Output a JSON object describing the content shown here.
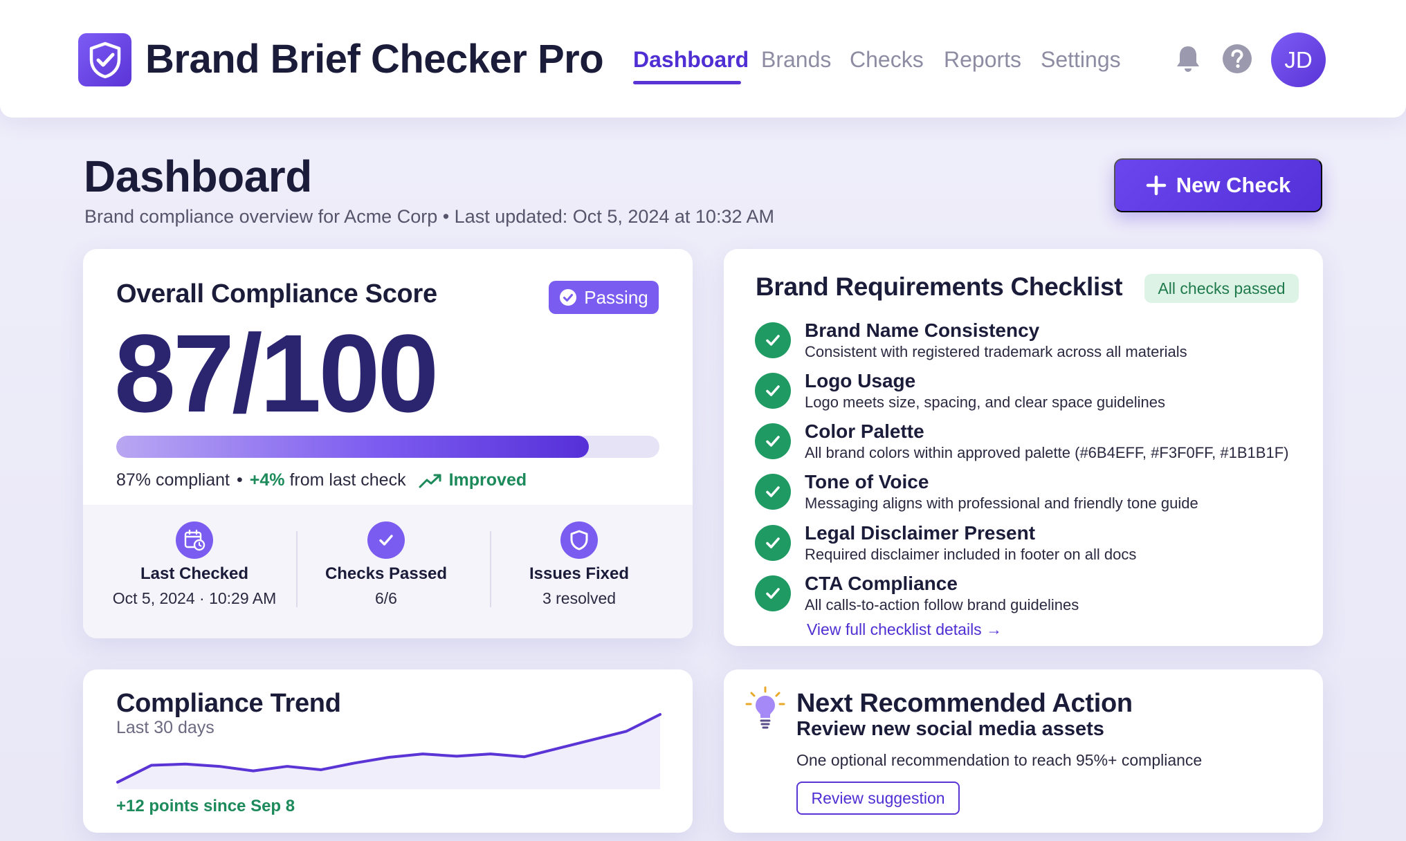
{
  "app": {
    "title": "Brand Brief Checker Pro",
    "logo_icon": "shield-check-icon",
    "accent_color": "#5b34d6"
  },
  "nav": {
    "items": [
      {
        "label": "Dashboard",
        "active": true
      },
      {
        "label": "Brands",
        "active": false
      },
      {
        "label": "Checks",
        "active": false
      },
      {
        "label": "Reports",
        "active": false
      },
      {
        "label": "Settings",
        "active": false
      }
    ],
    "notifications_icon": "bell-icon",
    "help_icon": "help-icon",
    "avatar_initials": "JD"
  },
  "page": {
    "title": "Dashboard",
    "subtitle": "Brand compliance overview for Acme Corp • Last updated: Oct 5, 2024 at 10:32 AM",
    "new_check_label": "New Check"
  },
  "score_card": {
    "heading": "Overall Compliance Score",
    "badge": "Passing",
    "score": "87/100",
    "progress_fraction": 0.87,
    "compliant_text": "87% compliant",
    "separator": "•",
    "delta": "+4%",
    "delta_suffix": "from last check",
    "trend_label": "Improved",
    "stats": [
      {
        "icon": "calendar-clock-icon",
        "label": "Last Checked",
        "value": "Oct 5, 2024 · 10:29 AM"
      },
      {
        "icon": "check-icon",
        "label": "Checks Passed",
        "value": "6/6"
      },
      {
        "icon": "shield-icon",
        "label": "Issues Fixed",
        "value": "3 resolved"
      }
    ]
  },
  "checklist": {
    "heading": "Brand Requirements Checklist",
    "badge": "All checks passed",
    "items": [
      {
        "title": "Brand Name Consistency",
        "desc": "Consistent with registered trademark across all materials"
      },
      {
        "title": "Logo Usage",
        "desc": "Logo meets size, spacing, and clear space guidelines"
      },
      {
        "title": "Color Palette",
        "desc": "All brand colors within approved palette (#6B4EFF, #F3F0FF, #1B1B1F)"
      },
      {
        "title": "Tone of Voice",
        "desc": "Messaging aligns with professional and friendly tone guide"
      },
      {
        "title": "Legal Disclaimer Present",
        "desc": "Required disclaimer included in footer on all docs"
      },
      {
        "title": "CTA Compliance",
        "desc": "All calls-to-action follow brand guidelines"
      }
    ],
    "link": "View full checklist details →"
  },
  "trend": {
    "heading": "Compliance Trend",
    "period": "Last 30 days",
    "footer": "+12 points since Sep 8",
    "points": [
      75,
      78,
      78.2,
      77.8,
      77,
      77.8,
      77.2,
      78.4,
      79.4,
      80,
      79.6,
      80,
      79.5,
      81,
      82.5,
      84,
      87
    ]
  },
  "action": {
    "heading": "Next Recommended Action",
    "icon": "lightbulb-icon",
    "title": "Review new social media assets",
    "desc": "One optional recommendation to reach 95%+ compliance",
    "button": "Review suggestion"
  }
}
